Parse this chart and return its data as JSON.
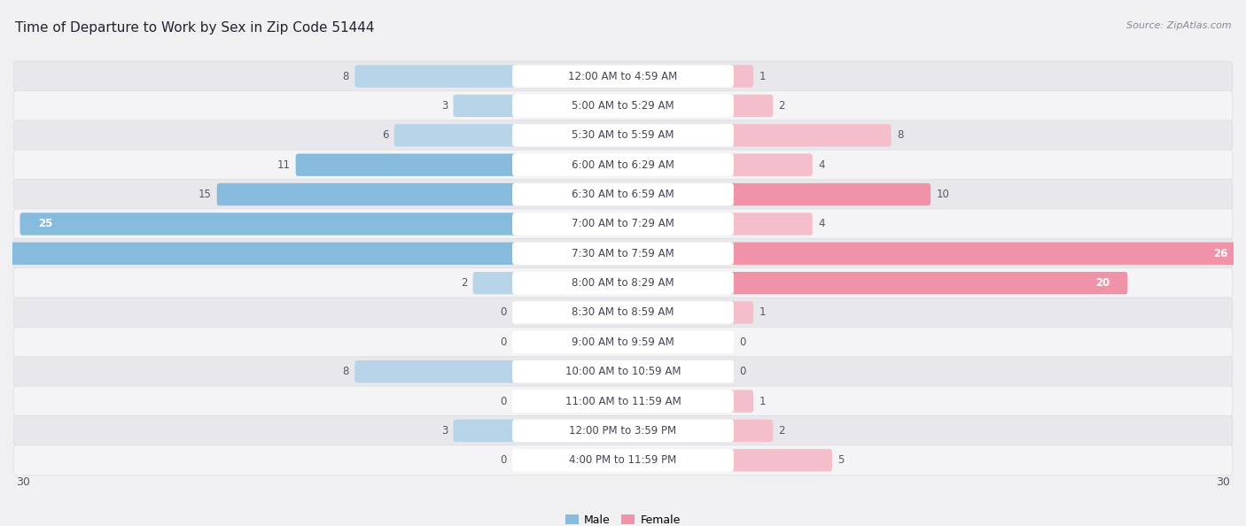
{
  "title": "Time of Departure to Work by Sex in Zip Code 51444",
  "source": "Source: ZipAtlas.com",
  "categories": [
    "12:00 AM to 4:59 AM",
    "5:00 AM to 5:29 AM",
    "5:30 AM to 5:59 AM",
    "6:00 AM to 6:29 AM",
    "6:30 AM to 6:59 AM",
    "7:00 AM to 7:29 AM",
    "7:30 AM to 7:59 AM",
    "8:00 AM to 8:29 AM",
    "8:30 AM to 8:59 AM",
    "9:00 AM to 9:59 AM",
    "10:00 AM to 10:59 AM",
    "11:00 AM to 11:59 AM",
    "12:00 PM to 3:59 PM",
    "4:00 PM to 11:59 PM"
  ],
  "male_values": [
    8,
    3,
    6,
    11,
    15,
    25,
    30,
    2,
    0,
    0,
    8,
    0,
    3,
    0
  ],
  "female_values": [
    1,
    2,
    8,
    4,
    10,
    4,
    26,
    20,
    1,
    0,
    0,
    1,
    2,
    5
  ],
  "male_color": "#87BBDE",
  "female_color": "#F093A8",
  "male_color_light": "#B8D4E8",
  "female_color_light": "#F4BFCA",
  "male_label": "Male",
  "female_label": "Female",
  "axis_max": 30,
  "bg_color": "#f0f0f2",
  "row_bg_odd": "#e8e8ec",
  "row_bg_even": "#f4f4f6",
  "label_pill_color": "#ffffff",
  "title_fontsize": 11,
  "cat_fontsize": 8.5,
  "value_fontsize": 8.5,
  "source_fontsize": 8,
  "label_color": "#444455",
  "value_color_outside": "#555566",
  "value_color_inside": "#ffffff"
}
